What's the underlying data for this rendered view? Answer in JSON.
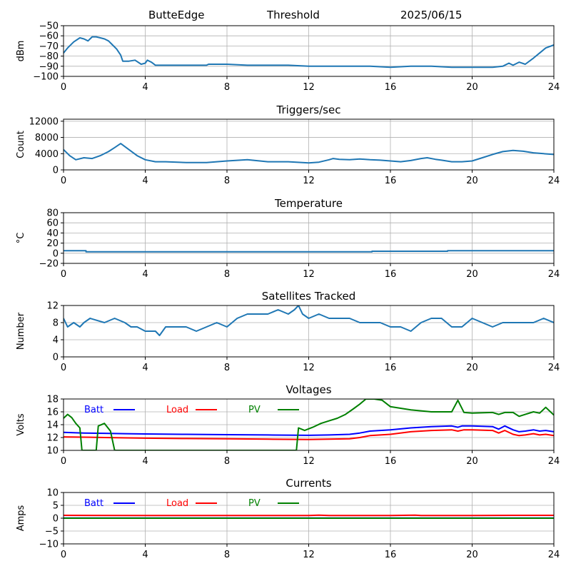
{
  "header": {
    "station": "ButteEdge",
    "mode": "Threshold",
    "date": "2025/06/15"
  },
  "colors": {
    "series_default": "#1f77b4",
    "batt": "#0000ff",
    "load": "#ff0000",
    "pv": "#008000",
    "grid": "#b0b0b0"
  },
  "legend_labels": [
    "Batt",
    "Load",
    "PV"
  ],
  "chart_data": [
    {
      "id": "signal",
      "type": "line",
      "title": "",
      "ylabel": "dBm",
      "xlabel": "",
      "xlim": [
        0,
        24
      ],
      "ylim": [
        -100,
        -50
      ],
      "xticks": [
        0,
        4,
        8,
        12,
        16,
        20,
        24
      ],
      "yticks": [
        -100,
        -90,
        -80,
        -70,
        -60,
        -50
      ],
      "grid": true,
      "series": [
        {
          "color": "#1f77b4",
          "x": [
            0,
            0.2,
            0.5,
            0.8,
            1.0,
            1.2,
            1.4,
            1.6,
            1.8,
            2.0,
            2.2,
            2.4,
            2.6,
            2.8,
            2.9,
            3.2,
            3.5,
            3.8,
            4.0,
            4.1,
            4.3,
            4.5,
            5,
            6,
            7,
            7.1,
            8,
            9,
            10,
            11,
            12,
            13,
            14,
            15,
            16,
            17,
            18,
            19,
            20,
            21,
            21.5,
            21.8,
            22,
            22.3,
            22.6,
            23,
            23.3,
            23.6,
            24
          ],
          "y": [
            -77,
            -72,
            -66,
            -62,
            -63,
            -65,
            -61,
            -61,
            -62,
            -63,
            -65,
            -69,
            -73,
            -79,
            -85,
            -85,
            -84,
            -88,
            -87,
            -84,
            -86,
            -89,
            -89,
            -89,
            -89,
            -88,
            -88,
            -89,
            -89,
            -89,
            -90,
            -90,
            -90,
            -90,
            -91,
            -90,
            -90,
            -91,
            -91,
            -91,
            -90,
            -87,
            -89,
            -86,
            -88,
            -82,
            -77,
            -72,
            -69
          ]
        }
      ]
    },
    {
      "id": "triggers",
      "type": "line",
      "title": "Triggers/sec",
      "ylabel": "Count",
      "xlabel": "",
      "xlim": [
        0,
        24
      ],
      "ylim": [
        0,
        12500
      ],
      "xticks": [
        0,
        4,
        8,
        12,
        16,
        20,
        24
      ],
      "yticks": [
        0,
        4000,
        8000,
        12000
      ],
      "grid": true,
      "series": [
        {
          "color": "#1f77b4",
          "x": [
            0,
            0.3,
            0.6,
            1.0,
            1.4,
            1.8,
            2.2,
            2.5,
            2.8,
            3.2,
            3.6,
            4.0,
            4.5,
            5,
            6,
            7,
            8,
            9,
            10,
            11,
            12,
            12.5,
            13,
            13.2,
            13.5,
            14,
            14.5,
            15,
            15.5,
            16,
            16.5,
            17,
            17.5,
            17.8,
            18.2,
            18.5,
            19,
            19.5,
            20,
            20.5,
            21,
            21.5,
            22,
            22.5,
            23,
            23.5,
            24
          ],
          "y": [
            5000,
            3500,
            2500,
            3000,
            2800,
            3500,
            4500,
            5500,
            6500,
            5000,
            3500,
            2500,
            2000,
            2000,
            1800,
            1800,
            2200,
            2500,
            2000,
            2000,
            1700,
            1900,
            2500,
            2800,
            2600,
            2500,
            2700,
            2500,
            2400,
            2200,
            2000,
            2300,
            2800,
            3000,
            2600,
            2400,
            2000,
            2000,
            2200,
            3000,
            3800,
            4500,
            4800,
            4600,
            4200,
            4000,
            3800
          ]
        }
      ]
    },
    {
      "id": "temperature",
      "type": "line",
      "title": "Temperature",
      "ylabel": "°C",
      "xlabel": "",
      "xlim": [
        0,
        24
      ],
      "ylim": [
        -20,
        80
      ],
      "xticks": [
        0,
        4,
        8,
        12,
        16,
        20,
        24
      ],
      "yticks": [
        -20,
        0,
        20,
        40,
        60,
        80
      ],
      "grid": true,
      "series": [
        {
          "color": "#1f77b4",
          "x": [
            0,
            1.1,
            1.1,
            15.1,
            15.1,
            18.8,
            18.8,
            24
          ],
          "y": [
            5,
            5,
            3,
            3,
            4,
            4,
            5,
            5
          ]
        }
      ]
    },
    {
      "id": "satellites",
      "type": "line",
      "title": "Satellites Tracked",
      "ylabel": "Number",
      "xlabel": "",
      "xlim": [
        0,
        24
      ],
      "ylim": [
        0,
        12
      ],
      "xticks": [
        0,
        4,
        8,
        12,
        16,
        20,
        24
      ],
      "yticks": [
        0,
        4,
        8,
        12
      ],
      "grid": true,
      "series": [
        {
          "color": "#1f77b4",
          "x": [
            0,
            0.2,
            0.5,
            0.8,
            1.0,
            1.3,
            2.0,
            2.5,
            3.0,
            3.3,
            3.6,
            4.0,
            4.5,
            4.7,
            5.0,
            5.5,
            6.0,
            6.5,
            7.0,
            7.5,
            8.0,
            8.5,
            9.0,
            9.5,
            10.0,
            10.5,
            11.0,
            11.3,
            11.5,
            11.7,
            12.0,
            12.5,
            13.0,
            13.5,
            14.0,
            14.5,
            15.0,
            15.5,
            16.0,
            16.5,
            17.0,
            17.5,
            18.0,
            18.5,
            19.0,
            19.5,
            20.0,
            20.5,
            21.0,
            21.5,
            22.0,
            22.5,
            23.0,
            23.5,
            24
          ],
          "y": [
            9,
            7,
            8,
            7,
            8,
            9,
            8,
            9,
            8,
            7,
            7,
            6,
            6,
            5,
            7,
            7,
            7,
            6,
            7,
            8,
            7,
            9,
            10,
            10,
            10,
            11,
            10,
            11,
            12,
            10,
            9,
            10,
            9,
            9,
            9,
            8,
            8,
            8,
            7,
            7,
            6,
            8,
            9,
            9,
            7,
            7,
            9,
            8,
            7,
            8,
            8,
            8,
            8,
            9,
            8
          ]
        }
      ]
    },
    {
      "id": "voltages",
      "type": "line",
      "title": "Voltages",
      "ylabel": "Volts",
      "xlabel": "",
      "xlim": [
        0,
        24
      ],
      "ylim": [
        10,
        18
      ],
      "xticks": [
        0,
        4,
        8,
        12,
        16,
        20,
        24
      ],
      "yticks": [
        10,
        12,
        14,
        16,
        18
      ],
      "grid": true,
      "legend": "top-left",
      "series": [
        {
          "name": "Batt",
          "color": "#0000ff",
          "x": [
            0,
            0.5,
            1,
            2,
            3,
            4,
            6,
            8,
            10,
            12,
            13,
            14,
            14.5,
            15,
            16,
            17,
            18,
            19,
            19.3,
            19.5,
            20,
            21,
            21.3,
            21.6,
            22,
            22.3,
            22.6,
            23,
            23.3,
            23.6,
            24
          ],
          "y": [
            12.8,
            12.75,
            12.7,
            12.65,
            12.6,
            12.55,
            12.5,
            12.45,
            12.4,
            12.35,
            12.4,
            12.5,
            12.7,
            13.0,
            13.2,
            13.5,
            13.7,
            13.8,
            13.6,
            13.8,
            13.8,
            13.7,
            13.3,
            13.8,
            13.2,
            12.9,
            13.0,
            13.2,
            13.0,
            13.1,
            12.9
          ]
        },
        {
          "name": "Load",
          "color": "#ff0000",
          "x": [
            0,
            1,
            2,
            4,
            6,
            8,
            10,
            12,
            13,
            14,
            14.5,
            15,
            16,
            17,
            18,
            19,
            19.3,
            19.6,
            20,
            21,
            21.3,
            21.6,
            22,
            22.3,
            22.6,
            23,
            23.3,
            23.6,
            24
          ],
          "y": [
            12.1,
            12.05,
            12.0,
            11.9,
            11.85,
            11.8,
            11.75,
            11.7,
            11.75,
            11.8,
            12.0,
            12.3,
            12.5,
            12.9,
            13.1,
            13.2,
            13.0,
            13.2,
            13.2,
            13.1,
            12.7,
            13.1,
            12.5,
            12.3,
            12.4,
            12.6,
            12.4,
            12.5,
            12.3
          ]
        },
        {
          "name": "PV",
          "color": "#008000",
          "x": [
            0,
            0.2,
            0.4,
            0.6,
            0.8,
            0.9,
            1.6,
            1.7,
            2.0,
            2.3,
            2.5,
            11.4,
            11.5,
            11.8,
            12.2,
            12.6,
            13,
            13.4,
            13.8,
            14.2,
            14.5,
            14.8,
            15.2,
            15.6,
            16,
            17,
            18,
            19,
            19.3,
            19.6,
            20,
            21,
            21.3,
            21.6,
            22,
            22.3,
            22.6,
            23,
            23.3,
            23.6,
            24
          ],
          "y": [
            15.0,
            15.6,
            15.1,
            14.2,
            13.5,
            10,
            10,
            13.8,
            14.2,
            13.0,
            10,
            10,
            13.5,
            13.1,
            13.6,
            14.2,
            14.6,
            15.0,
            15.6,
            16.5,
            17.2,
            18,
            18,
            17.8,
            16.8,
            16.3,
            16.0,
            16.0,
            17.8,
            15.9,
            15.8,
            15.9,
            15.6,
            15.9,
            15.9,
            15.3,
            15.6,
            16.0,
            15.8,
            16.7,
            15.5
          ]
        }
      ]
    },
    {
      "id": "currents",
      "type": "line",
      "title": "Currents",
      "ylabel": "Amps",
      "xlabel": "",
      "xlim": [
        0,
        24
      ],
      "ylim": [
        -10,
        10
      ],
      "xticks": [
        0,
        4,
        8,
        12,
        16,
        20,
        24
      ],
      "yticks": [
        -10,
        -5,
        0,
        5,
        10
      ],
      "grid": true,
      "legend": "top-left",
      "series": [
        {
          "name": "Batt",
          "color": "#0000ff",
          "x": [
            0,
            24
          ],
          "y": [
            0.05,
            0.05
          ]
        },
        {
          "name": "Load",
          "color": "#ff0000",
          "x": [
            0,
            4,
            8,
            12,
            12.5,
            13,
            16,
            17.2,
            17.5,
            20,
            22,
            24
          ],
          "y": [
            1.1,
            1.05,
            1.05,
            1.05,
            1.2,
            1.05,
            1.05,
            1.2,
            1.05,
            1.05,
            1.1,
            1.1
          ]
        },
        {
          "name": "PV",
          "color": "#008000",
          "x": [
            0,
            24
          ],
          "y": [
            0.0,
            0.0
          ]
        }
      ]
    }
  ]
}
